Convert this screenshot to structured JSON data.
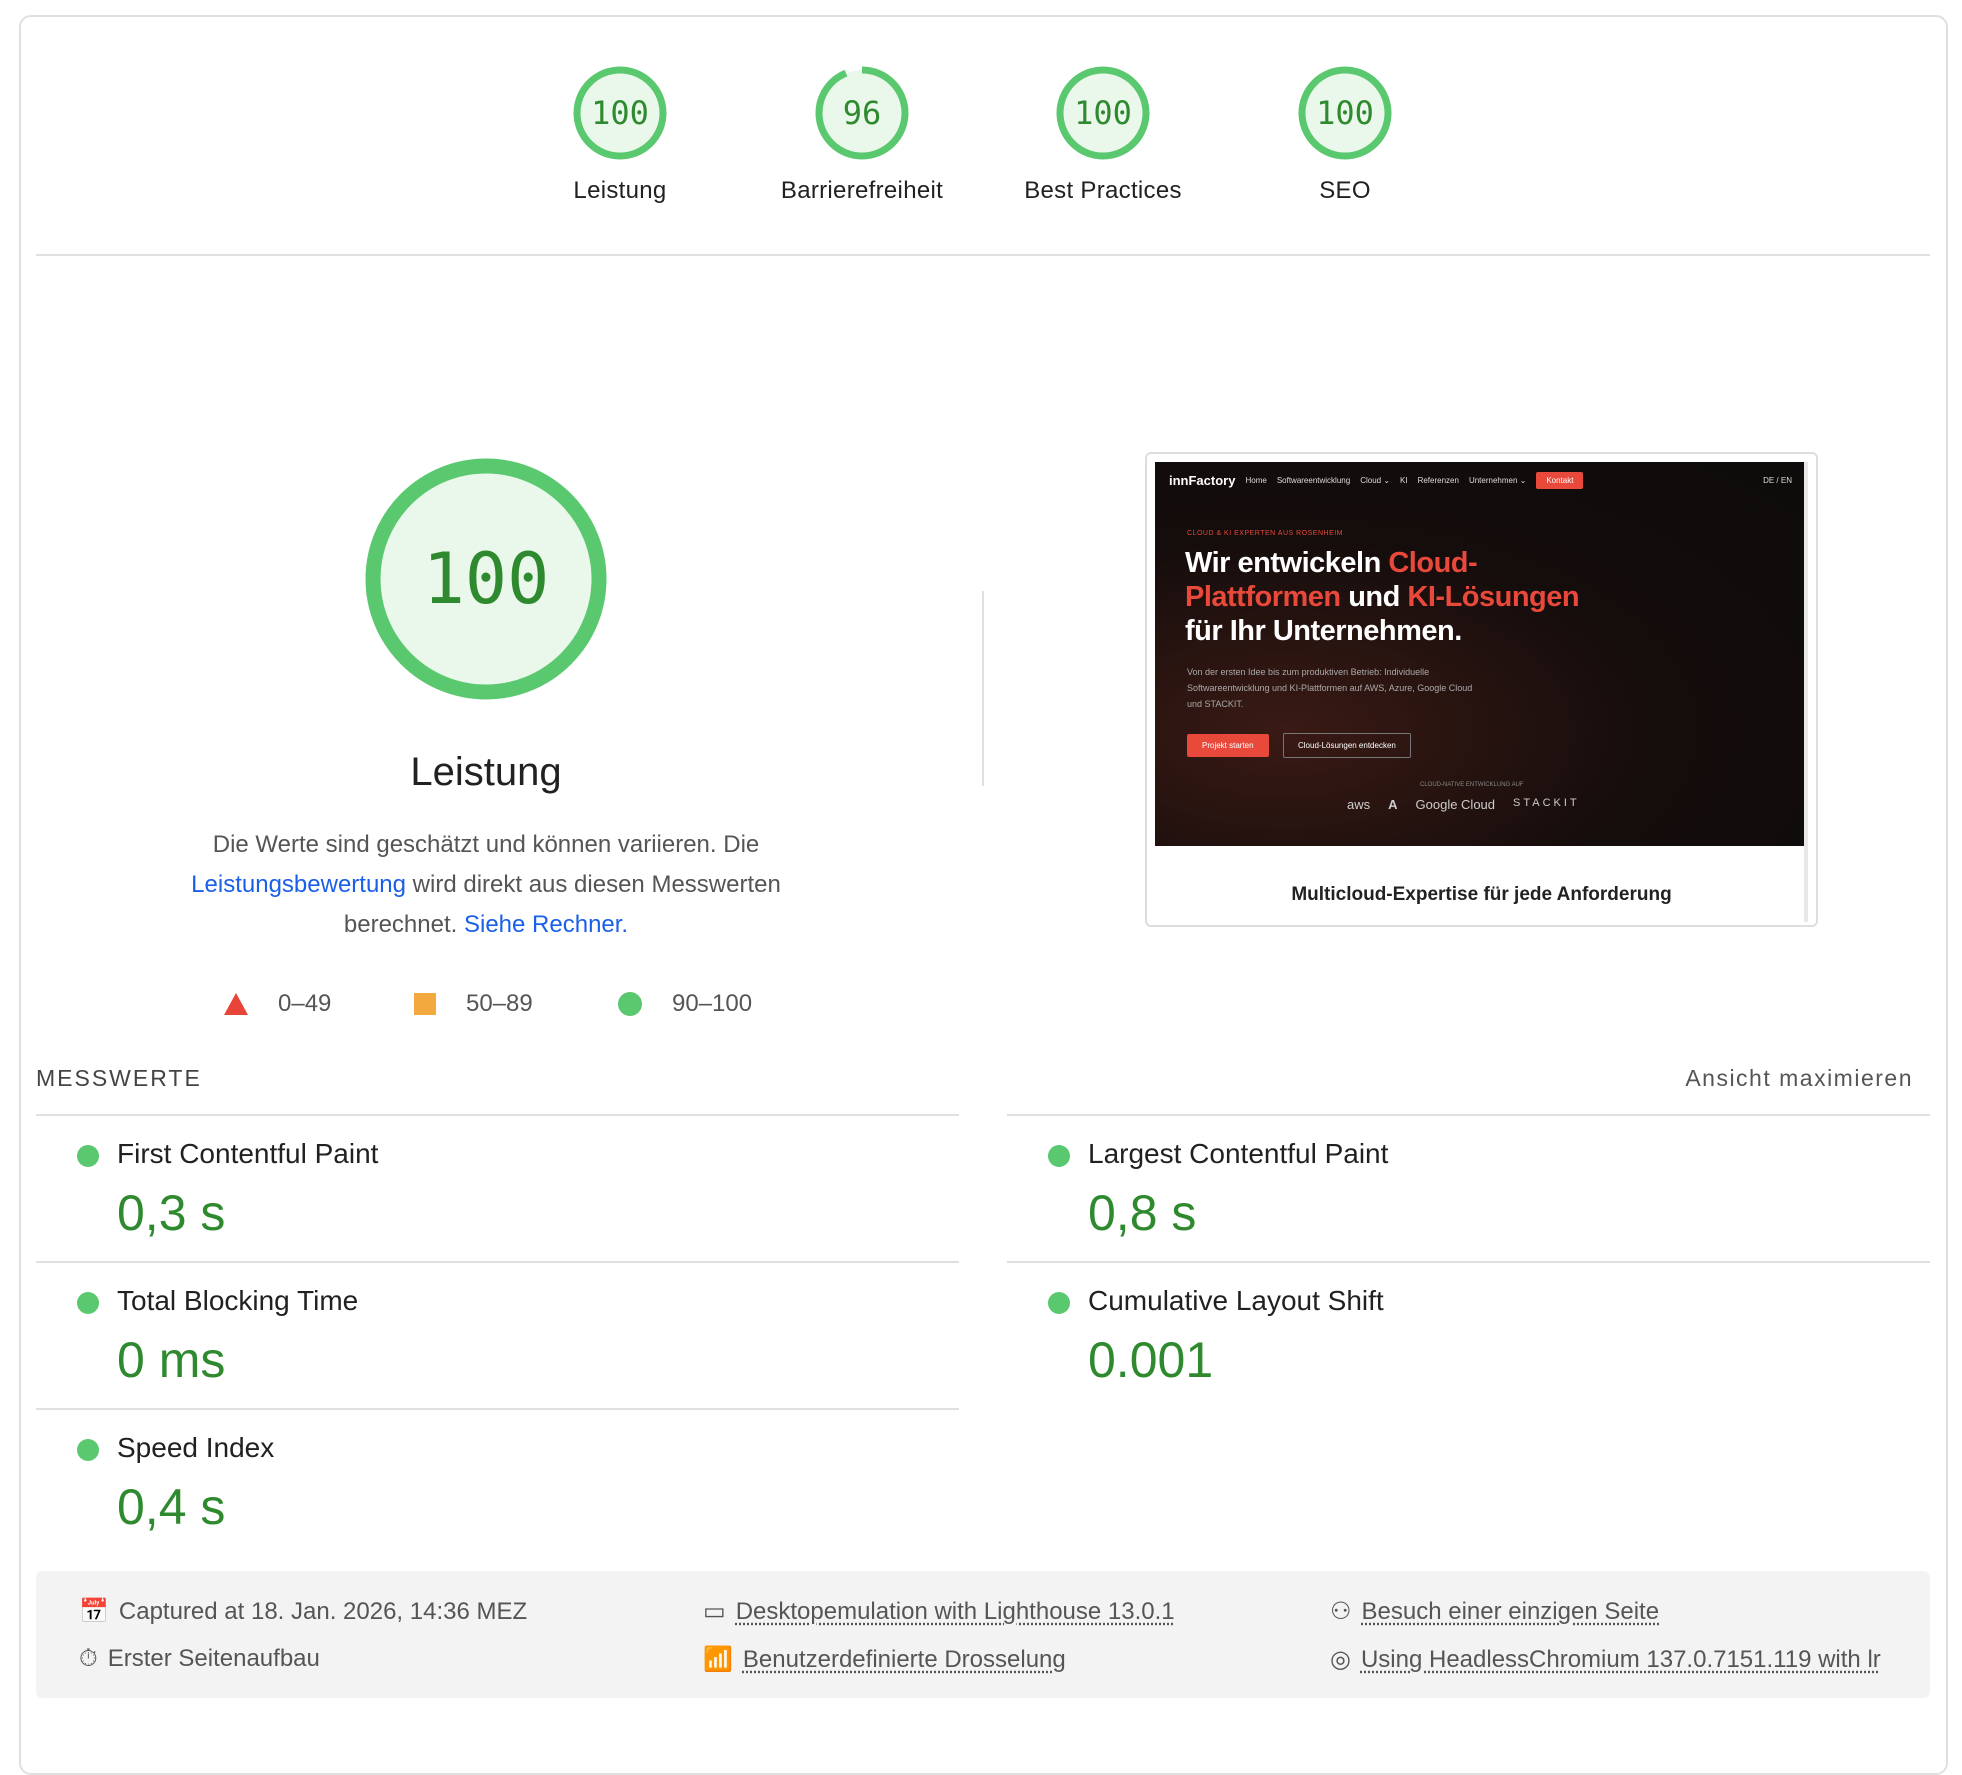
{
  "categories": [
    {
      "label": "Leistung",
      "score": "100",
      "value": 100
    },
    {
      "label": "Barrierefreiheit",
      "score": "96",
      "value": 96
    },
    {
      "label": "Best Practices",
      "score": "100",
      "value": 100
    },
    {
      "label": "SEO",
      "score": "100",
      "value": 100
    }
  ],
  "main": {
    "score": "100",
    "score_value": 100,
    "title": "Leistung",
    "desc_1": "Die Werte sind geschätzt und können variieren. Die",
    "desc_link1": "Leistungsbewertung",
    "desc_2": " wird direkt aus diesen Messwerten berechnet. ",
    "desc_link2": "Siehe Rechner.",
    "legend": [
      "0–49",
      "50–89",
      "90–100"
    ]
  },
  "colors": {
    "pass": "#5ac86e",
    "average": "#f4a93e",
    "fail": "#e8443a",
    "link": "#1a5fe8"
  },
  "screenshot": {
    "logo": "innFactory",
    "nav": [
      "Home",
      "Softwareentwicklung",
      "Cloud ⌄",
      "KI",
      "Referenzen",
      "Unternehmen ⌄"
    ],
    "contact": "Kontakt",
    "lang": "DE / EN",
    "eyebrow": "CLOUD & KI EXPERTEN AUS ROSENHEIM",
    "h_1": "Wir entwickeln ",
    "h_2": "Cloud-",
    "h_3": "Plattformen",
    "h_4": " und ",
    "h_5": "KI-Lösungen",
    "h_6": "für Ihr Unternehmen.",
    "sub": "Von der ersten Idee bis zum produktiven Betrieb: Individuelle Softwareentwicklung und KI-Plattformen auf AWS, Azure, Google Cloud und STACKIT.",
    "btn1": "Projekt starten",
    "btn2": "Cloud-Lösungen entdecken",
    "platforms_label": "CLOUD-NATIVE ENTWICKLUNG AUF",
    "platforms": [
      "aws",
      "A",
      "Google Cloud",
      "STACKIT"
    ],
    "caption": "Multicloud-Expertise für jede Anforderung"
  },
  "metrics": {
    "header": "MESSWERTE",
    "toggle": "Ansicht maximieren",
    "items": [
      {
        "title": "First Contentful Paint",
        "value": "0,3 s"
      },
      {
        "title": "Largest Contentful Paint",
        "value": "0,8 s"
      },
      {
        "title": "Total Blocking Time",
        "value": "0 ms"
      },
      {
        "title": "Cumulative Layout Shift",
        "value": "0.001"
      },
      {
        "title": "Speed Index",
        "value": "0,4 s"
      }
    ]
  },
  "footer": {
    "captured": "Captured at 18. Jan. 2026, 14:36 MEZ",
    "load": "Erster Seitenaufbau",
    "emulation": "Desktopemulation with Lighthouse 13.0.1",
    "throttling": "Benutzerdefinierte Drosselung",
    "session": "Besuch einer einzigen Seite",
    "browser": "Using HeadlessChromium 137.0.7151.119 with lr"
  }
}
